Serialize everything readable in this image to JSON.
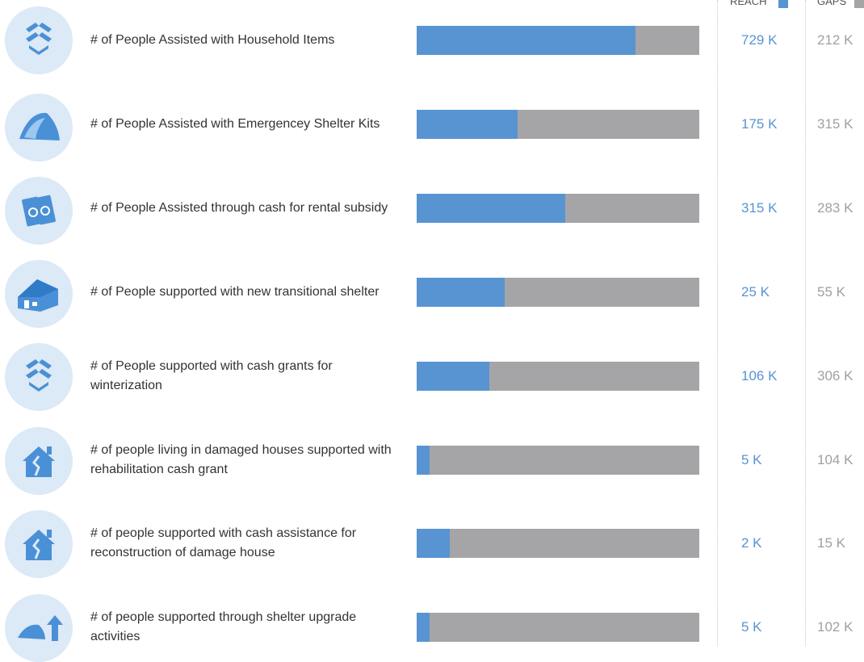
{
  "chart_data": {
    "type": "bar",
    "orientation": "horizontal",
    "stacked": true,
    "normalized": true,
    "categories": [
      "# of People Assisted with Household Items",
      "# of People Assisted with Emergencey Shelter Kits",
      "# of People Assisted through cash for rental subsidy",
      "# of People supported with new transitional shelter",
      "# of People supported with cash grants for winterization",
      "# of people living in damaged houses supported with rehabilitation cash grant",
      "# of people supported with cash assistance for reconstruction of damage house",
      "# of people supported through shelter upgrade activities"
    ],
    "series": [
      {
        "name": "REACH",
        "color": "#5894d1",
        "values": [
          729,
          175,
          315,
          25,
          106,
          5,
          2,
          5
        ],
        "value_labels": [
          "729 K",
          "175 K",
          "315 K",
          "25 K",
          "106 K",
          "5 K",
          "2 K",
          "5 K"
        ]
      },
      {
        "name": "GAPS",
        "color": "#a5a5a8",
        "values": [
          212,
          315,
          283,
          55,
          306,
          104,
          15,
          102
        ],
        "value_labels": [
          "212 K",
          "315 K",
          "283 K",
          "55 K",
          "306 K",
          "104 K",
          "15 K",
          "102 K"
        ]
      }
    ]
  }
}
